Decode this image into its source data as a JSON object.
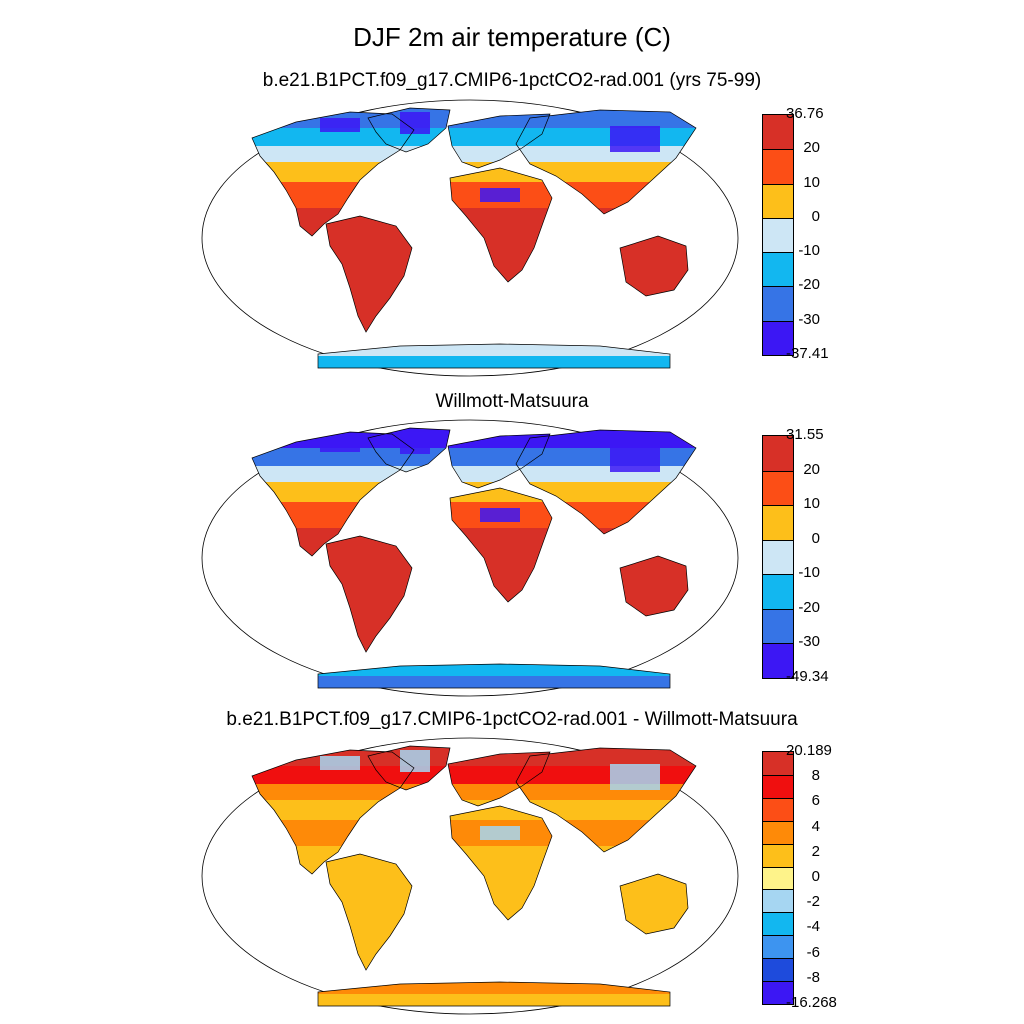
{
  "title": "DJF 2m air temperature (C)",
  "panels": [
    {
      "subtitle": "b.e21.B1PCT.f09_g17.CMIP6-1pctCO2-rad.001 (yrs 75-99)",
      "colorbar": {
        "labels": [
          "36.76",
          "20",
          "10",
          "0",
          "-10",
          "-20",
          "-30",
          "-37.41"
        ],
        "colors": [
          "#d73027",
          "#fc4e16",
          "#fdbf1a",
          "#cde6f5",
          "#12b7f0",
          "#3674e6",
          "#3c17f4"
        ]
      },
      "fills": {
        "arctic": "#3674e6",
        "north_mid": "#12b7f0",
        "north": "#cde6f5",
        "subtrop": "#fdbf1a",
        "trop": "#fc4e16",
        "south": "#d73027",
        "antarctic": "#cde6f5",
        "antarctic_inner": "#12b7f0",
        "extreme": "#3c17f4"
      }
    },
    {
      "subtitle": "Willmott-Matsuura",
      "colorbar": {
        "labels": [
          "31.55",
          "20",
          "10",
          "0",
          "-10",
          "-20",
          "-30",
          "-49.34"
        ],
        "colors": [
          "#d73027",
          "#fc4e16",
          "#fdbf1a",
          "#cde6f5",
          "#12b7f0",
          "#3674e6",
          "#3c17f4"
        ]
      },
      "fills": {
        "arctic": "#3c17f4",
        "north_mid": "#3674e6",
        "north": "#cde6f5",
        "subtrop": "#fdbf1a",
        "trop": "#fc4e16",
        "south": "#d73027",
        "antarctic": "#12b7f0",
        "antarctic_inner": "#3674e6",
        "extreme": "#3c17f4"
      }
    },
    {
      "subtitle": "b.e21.B1PCT.f09_g17.CMIP6-1pctCO2-rad.001 - Willmott-Matsuura",
      "colorbar": {
        "labels": [
          "20.189",
          "8",
          "6",
          "4",
          "2",
          "0",
          "-2",
          "-4",
          "-6",
          "-8",
          "-16.268"
        ],
        "colors": [
          "#d73027",
          "#f00f0f",
          "#fc4e16",
          "#fe8a08",
          "#fdbf1a",
          "#fef38a",
          "#a6d6f2",
          "#12b7f0",
          "#3d94f0",
          "#1e4bdc",
          "#3c17f4"
        ]
      },
      "fills": {
        "arctic": "#d73027",
        "north_mid": "#f00f0f",
        "north": "#fe8a08",
        "subtrop": "#fdbf1a",
        "trop": "#fe8a08",
        "south": "#fdbf1a",
        "antarctic": "#fe8a08",
        "antarctic_inner": "#fdbf1a",
        "extreme": "#a6d6f2"
      }
    }
  ]
}
